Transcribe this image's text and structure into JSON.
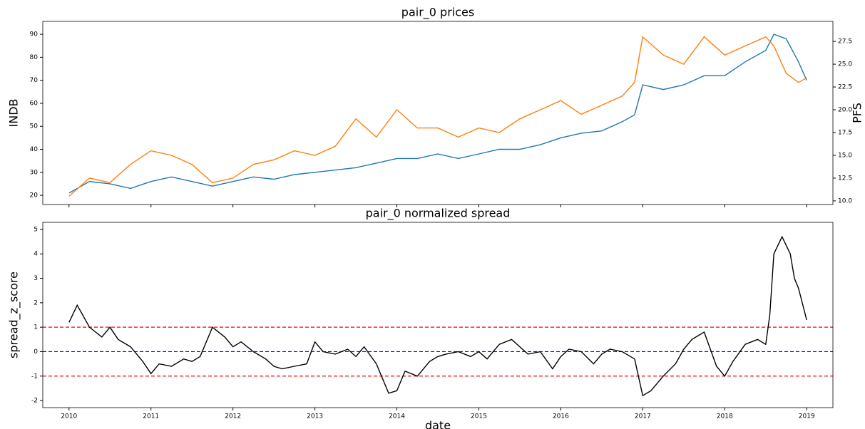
{
  "chart_data": [
    {
      "type": "line",
      "title": "pair_0 prices",
      "ylabel": "INDB",
      "y2label": "PFS",
      "x": [
        2010,
        2010.25,
        2010.5,
        2010.75,
        2011,
        2011.25,
        2011.5,
        2011.75,
        2012,
        2012.25,
        2012.5,
        2012.75,
        2013,
        2013.25,
        2013.5,
        2013.75,
        2014,
        2014.25,
        2014.5,
        2014.75,
        2015,
        2015.25,
        2015.5,
        2015.75,
        2016,
        2016.25,
        2016.5,
        2016.75,
        2016.9,
        2017,
        2017.25,
        2017.5,
        2017.75,
        2018,
        2018.25,
        2018.5,
        2018.6,
        2018.75,
        2018.9,
        2019
      ],
      "series": [
        {
          "name": "INDB",
          "color": "#1f77b4",
          "values": [
            21,
            26,
            25,
            23,
            26,
            28,
            26,
            24,
            26,
            28,
            27,
            29,
            30,
            31,
            32,
            34,
            36,
            36,
            38,
            36,
            38,
            40,
            40,
            42,
            45,
            47,
            48,
            52,
            55,
            68,
            66,
            68,
            72,
            72,
            78,
            83,
            90,
            88,
            78,
            70
          ]
        },
        {
          "name": "PFS",
          "color": "#ff7f0e",
          "axis": "y2",
          "values": [
            10.5,
            12.5,
            12,
            14,
            15.5,
            15,
            14,
            12,
            12.5,
            14,
            14.5,
            15.5,
            15,
            16,
            19,
            17,
            20,
            18,
            18,
            17,
            18,
            17.5,
            19,
            20,
            21,
            19.5,
            20.5,
            21.5,
            23,
            28,
            26,
            25,
            28,
            26,
            27,
            28,
            27,
            24,
            23,
            23.5
          ]
        }
      ],
      "ylim": [
        16,
        95.6
      ],
      "yticks": [
        20,
        30,
        40,
        50,
        60,
        70,
        80,
        90
      ],
      "y2lim": [
        9.6,
        29.7
      ],
      "y2ticks": [
        {
          "value": 10,
          "label": "10.0"
        },
        12.5,
        {
          "value": 15,
          "label": "15.0"
        },
        17.5,
        {
          "value": 20,
          "label": "20.0"
        },
        22.5,
        {
          "value": 25,
          "label": "25.0"
        },
        27.5
      ],
      "xlim": [
        2009.68,
        2019.32
      ]
    },
    {
      "type": "line",
      "title": "pair_0 normalized spread",
      "ylabel": "spread_z_score",
      "xlabel": "date",
      "x": [
        2010,
        2010.1,
        2010.25,
        2010.4,
        2010.5,
        2010.6,
        2010.75,
        2010.9,
        2011,
        2011.1,
        2011.25,
        2011.4,
        2011.5,
        2011.6,
        2011.75,
        2011.9,
        2012,
        2012.1,
        2012.25,
        2012.4,
        2012.5,
        2012.6,
        2012.75,
        2012.9,
        2013,
        2013.1,
        2013.25,
        2013.4,
        2013.5,
        2013.6,
        2013.75,
        2013.9,
        2014,
        2014.1,
        2014.25,
        2014.4,
        2014.5,
        2014.6,
        2014.75,
        2014.9,
        2015,
        2015.1,
        2015.25,
        2015.4,
        2015.5,
        2015.6,
        2015.75,
        2015.9,
        2016,
        2016.1,
        2016.25,
        2016.4,
        2016.5,
        2016.6,
        2016.75,
        2016.9,
        2017,
        2017.1,
        2017.25,
        2017.4,
        2017.5,
        2017.6,
        2017.75,
        2017.9,
        2018,
        2018.1,
        2018.25,
        2018.4,
        2018.5,
        2018.55,
        2018.6,
        2018.7,
        2018.8,
        2018.85,
        2018.9,
        2019
      ],
      "series": [
        {
          "name": "spread_z_score",
          "color": "#000000",
          "values": [
            1.2,
            1.9,
            1,
            0.6,
            1,
            0.5,
            0.2,
            -0.4,
            -0.9,
            -0.5,
            -0.6,
            -0.3,
            -0.4,
            -0.2,
            1.0,
            0.6,
            0.2,
            0.4,
            0,
            -0.3,
            -0.6,
            -0.7,
            -0.6,
            -0.5,
            0.4,
            0,
            -0.1,
            0.1,
            -0.2,
            0.2,
            -0.5,
            -1.7,
            -1.6,
            -0.8,
            -1.0,
            -0.4,
            -0.2,
            -0.1,
            0.0,
            -0.2,
            0,
            -0.3,
            0.3,
            0.5,
            0.2,
            -0.1,
            0.0,
            -0.7,
            -0.2,
            0.1,
            0,
            -0.5,
            -0.1,
            0.1,
            0,
            -0.3,
            -1.8,
            -1.6,
            -1.0,
            -0.5,
            0.1,
            0.5,
            0.8,
            -0.6,
            -1.0,
            -0.4,
            0.3,
            0.5,
            0.3,
            1.5,
            4.0,
            4.7,
            4.0,
            3.0,
            2.6,
            1.3
          ]
        }
      ],
      "hlines": [
        {
          "value": 1,
          "color": "#ff0000"
        },
        {
          "value": 0,
          "color": "#0000ff"
        },
        {
          "value": -1,
          "color": "#ff0000"
        }
      ],
      "ylim": [
        -2.29,
        5.29
      ],
      "yticks": [
        -2,
        -1,
        0,
        1,
        2,
        3,
        4,
        5
      ],
      "xlim": [
        2009.68,
        2019.32
      ],
      "xticks": [
        2010,
        2011,
        2012,
        2013,
        2014,
        2015,
        2016,
        2017,
        2018,
        2019
      ]
    }
  ]
}
